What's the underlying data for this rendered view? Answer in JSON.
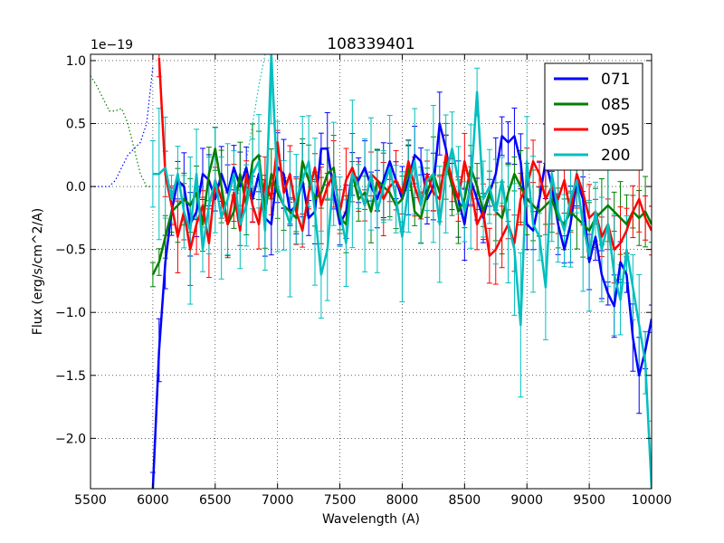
{
  "chart_data": {
    "type": "line",
    "title": "108339401",
    "xlabel": "Wavelength (A)",
    "ylabel": "Flux (erg/s/cm^2/A)",
    "offset_label": "1e−19",
    "xlim": [
      5500,
      10000
    ],
    "ylim": [
      -2.4,
      1.05
    ],
    "xticks": [
      5500,
      6000,
      6500,
      7000,
      7500,
      8000,
      8500,
      9000,
      9500,
      10000
    ],
    "yticks": [
      -2.0,
      -1.5,
      -1.0,
      -0.5,
      0.0,
      0.5,
      1.0
    ],
    "grid": true,
    "legend_position": "upper-right",
    "series": [
      {
        "name": "071",
        "color": "#0000ff",
        "x": [
          6000,
          6050,
          6100,
          6150,
          6200,
          6250,
          6300,
          6350,
          6400,
          6450,
          6500,
          6550,
          6600,
          6650,
          6700,
          6750,
          6800,
          6850,
          6900,
          6950,
          7000,
          7050,
          7100,
          7150,
          7200,
          7250,
          7300,
          7350,
          7400,
          7450,
          7500,
          7550,
          7600,
          7650,
          7700,
          7750,
          7800,
          7850,
          7900,
          7950,
          8000,
          8050,
          8100,
          8150,
          8200,
          8250,
          8300,
          8350,
          8400,
          8450,
          8500,
          8550,
          8600,
          8650,
          8700,
          8750,
          8800,
          8850,
          8900,
          8950,
          9000,
          9050,
          9100,
          9150,
          9200,
          9250,
          9300,
          9350,
          9400,
          9450,
          9500,
          9550,
          9600,
          9650,
          9700,
          9750,
          9800,
          9850,
          9900,
          9950,
          10000
        ],
        "y": [
          -2.4,
          -1.3,
          -0.6,
          -0.2,
          0.05,
          0.0,
          -0.3,
          -0.2,
          0.1,
          0.05,
          -0.1,
          0.1,
          -0.05,
          0.15,
          0.0,
          0.15,
          -0.1,
          0.1,
          -0.25,
          -0.3,
          0.15,
          0.1,
          -0.2,
          -0.15,
          0.05,
          -0.25,
          -0.2,
          0.3,
          0.3,
          -0.05,
          -0.3,
          -0.2,
          0.1,
          0.05,
          0.15,
          0.0,
          -0.1,
          0.05,
          0.2,
          0.05,
          -0.1,
          0.05,
          0.25,
          0.2,
          -0.1,
          0.0,
          0.5,
          0.3,
          0.0,
          -0.1,
          -0.3,
          0.05,
          -0.1,
          -0.25,
          -0.05,
          0.1,
          0.4,
          0.35,
          0.4,
          0.2,
          -0.3,
          -0.35,
          -0.1,
          0.2,
          0.0,
          -0.3,
          -0.5,
          -0.3,
          0.05,
          -0.1,
          -0.6,
          -0.4,
          -0.7,
          -0.85,
          -0.95,
          -0.6,
          -0.7,
          -1.2,
          -1.5,
          -1.3,
          -1.05
        ]
      },
      {
        "name": "085",
        "color": "#007f00",
        "x": [
          6000,
          6050,
          6100,
          6150,
          6200,
          6250,
          6300,
          6350,
          6400,
          6450,
          6500,
          6550,
          6600,
          6650,
          6700,
          6750,
          6800,
          6850,
          6900,
          6950,
          7000,
          7050,
          7100,
          7150,
          7200,
          7250,
          7300,
          7350,
          7400,
          7450,
          7500,
          7550,
          7600,
          7650,
          7700,
          7750,
          7800,
          7850,
          7900,
          7950,
          8000,
          8050,
          8100,
          8150,
          8200,
          8250,
          8300,
          8350,
          8400,
          8450,
          8500,
          8550,
          8600,
          8650,
          8700,
          8750,
          8800,
          8850,
          8900,
          8950,
          9000,
          9050,
          9100,
          9150,
          9200,
          9250,
          9300,
          9350,
          9400,
          9450,
          9500,
          9550,
          9600,
          9650,
          9700,
          9750,
          9800,
          9850,
          9900,
          9950,
          10000
        ],
        "y": [
          -0.7,
          -0.6,
          -0.4,
          -0.2,
          -0.15,
          -0.1,
          -0.15,
          -0.05,
          -0.3,
          0.1,
          0.3,
          0.0,
          -0.3,
          -0.2,
          0.1,
          -0.15,
          0.2,
          0.25,
          -0.2,
          0.1,
          -0.05,
          -0.15,
          -0.2,
          -0.25,
          0.2,
          0.05,
          -0.1,
          -0.05,
          0.1,
          0.15,
          -0.25,
          -0.3,
          0.1,
          -0.1,
          -0.05,
          -0.2,
          0.05,
          0.0,
          -0.05,
          -0.15,
          -0.1,
          0.15,
          -0.2,
          -0.25,
          -0.05,
          0.1,
          -0.05,
          0.2,
          0.0,
          -0.2,
          -0.1,
          0.15,
          0.0,
          -0.2,
          -0.05,
          -0.2,
          -0.25,
          -0.05,
          0.1,
          0.0,
          -0.1,
          -0.15,
          -0.2,
          -0.15,
          -0.1,
          -0.25,
          -0.3,
          -0.2,
          -0.25,
          -0.3,
          -0.35,
          -0.25,
          -0.2,
          -0.15,
          -0.2,
          -0.25,
          -0.3,
          -0.2,
          -0.25,
          -0.2,
          -0.3
        ]
      },
      {
        "name": "095",
        "color": "#ff0000",
        "x": [
          6050,
          6100,
          6150,
          6200,
          6250,
          6300,
          6350,
          6400,
          6450,
          6500,
          6550,
          6600,
          6650,
          6700,
          6750,
          6800,
          6850,
          6900,
          6950,
          7000,
          7050,
          7100,
          7150,
          7200,
          7250,
          7300,
          7350,
          7400,
          7450,
          7500,
          7550,
          7600,
          7650,
          7700,
          7750,
          7800,
          7850,
          7900,
          7950,
          8000,
          8050,
          8100,
          8150,
          8200,
          8250,
          8300,
          8350,
          8400,
          8450,
          8500,
          8550,
          8600,
          8650,
          8700,
          8750,
          8800,
          8850,
          8900,
          8950,
          9000,
          9050,
          9100,
          9150,
          9200,
          9250,
          9300,
          9350,
          9400,
          9450,
          9500,
          9550,
          9600,
          9650,
          9700,
          9750,
          9800,
          9850,
          9900,
          9950,
          10000
        ],
        "y": [
          1.02,
          0.1,
          -0.15,
          -0.4,
          -0.2,
          -0.5,
          -0.3,
          -0.15,
          -0.45,
          0.05,
          -0.1,
          -0.3,
          -0.05,
          -0.35,
          0.1,
          -0.15,
          -0.3,
          0.05,
          -0.1,
          0.35,
          -0.05,
          0.1,
          -0.2,
          -0.35,
          -0.05,
          0.15,
          -0.15,
          0.0,
          0.1,
          -0.2,
          0.05,
          0.15,
          0.0,
          -0.15,
          0.1,
          0.05,
          -0.1,
          0.0,
          0.05,
          -0.05,
          0.2,
          0.0,
          -0.15,
          0.1,
          -0.05,
          -0.1,
          0.25,
          0.05,
          -0.1,
          0.2,
          0.0,
          -0.3,
          -0.2,
          -0.55,
          -0.5,
          -0.4,
          -0.3,
          -0.45,
          -0.1,
          0.0,
          0.2,
          0.1,
          -0.1,
          0.0,
          -0.1,
          0.05,
          -0.2,
          0.1,
          -0.05,
          -0.25,
          -0.2,
          -0.4,
          -0.3,
          -0.5,
          -0.45,
          -0.35,
          -0.2,
          -0.1,
          -0.25,
          -0.35
        ]
      },
      {
        "name": "200",
        "color": "#00bfbf",
        "x": [
          6000,
          6050,
          6100,
          6150,
          6200,
          6250,
          6300,
          6350,
          6400,
          6450,
          6500,
          6550,
          6600,
          6650,
          6700,
          6750,
          6800,
          6850,
          6900,
          6950,
          7000,
          7050,
          7100,
          7150,
          7200,
          7250,
          7300,
          7350,
          7400,
          7450,
          7500,
          7550,
          7600,
          7650,
          7700,
          7750,
          7800,
          7850,
          7900,
          7950,
          8000,
          8050,
          8100,
          8150,
          8200,
          8250,
          8300,
          8350,
          8400,
          8450,
          8500,
          8550,
          8600,
          8650,
          8700,
          8750,
          8800,
          8850,
          8900,
          8950,
          9000,
          9050,
          9100,
          9150,
          9200,
          9250,
          9300,
          9350,
          9400,
          9450,
          9500,
          9550,
          9600,
          9650,
          9700,
          9750,
          9800,
          9850,
          9900,
          9950,
          10000
        ],
        "y": [
          0.1,
          0.1,
          0.15,
          -0.1,
          0.1,
          -0.2,
          -0.35,
          0.1,
          -0.5,
          -0.15,
          0.05,
          -0.25,
          -0.1,
          0.1,
          -0.3,
          -0.15,
          0.1,
          0.2,
          -0.35,
          1.05,
          0.0,
          -0.15,
          -0.3,
          -0.1,
          0.05,
          0.2,
          -0.2,
          -0.7,
          -0.5,
          0.1,
          -0.2,
          -0.45,
          0.1,
          0.0,
          -0.15,
          0.1,
          -0.2,
          0.0,
          0.15,
          -0.1,
          -0.4,
          0.0,
          0.2,
          -0.15,
          0.05,
          0.1,
          -0.3,
          0.1,
          0.3,
          0.05,
          -0.2,
          0.0,
          0.75,
          -0.1,
          0.0,
          -0.2,
          0.05,
          -0.3,
          -0.5,
          -1.1,
          0.2,
          -0.3,
          -0.4,
          -0.8,
          0.1,
          -0.2,
          -0.35,
          -0.1,
          0.05,
          -0.3,
          -0.55,
          -0.2,
          -0.5,
          -0.3,
          -0.7,
          -0.9,
          -0.5,
          -0.8,
          -1.1,
          -1.4,
          -2.4
        ]
      }
    ],
    "dotted_extensions": [
      {
        "name": "071",
        "color": "#0000ff",
        "x": [
          5500,
          5600,
          5650,
          5700,
          5750,
          5800,
          5850,
          5900,
          5950,
          6000
        ],
        "y": [
          0.0,
          0.0,
          0.0,
          0.05,
          0.15,
          0.25,
          0.3,
          0.35,
          0.5,
          0.95
        ]
      },
      {
        "name": "085",
        "color": "#007f00",
        "x": [
          5500,
          5550,
          5600,
          5650,
          5700,
          5750,
          5800,
          5850,
          5900,
          5950,
          6000
        ],
        "y": [
          0.88,
          0.8,
          0.7,
          0.6,
          0.6,
          0.62,
          0.5,
          0.3,
          0.1,
          0.0,
          0.0
        ]
      },
      {
        "name": "200",
        "color": "#00bfbf",
        "x": [
          6650,
          6700,
          6750,
          6800,
          6850,
          6900
        ],
        "y": [
          -0.2,
          0.0,
          0.2,
          0.5,
          0.8,
          1.05
        ]
      }
    ]
  }
}
